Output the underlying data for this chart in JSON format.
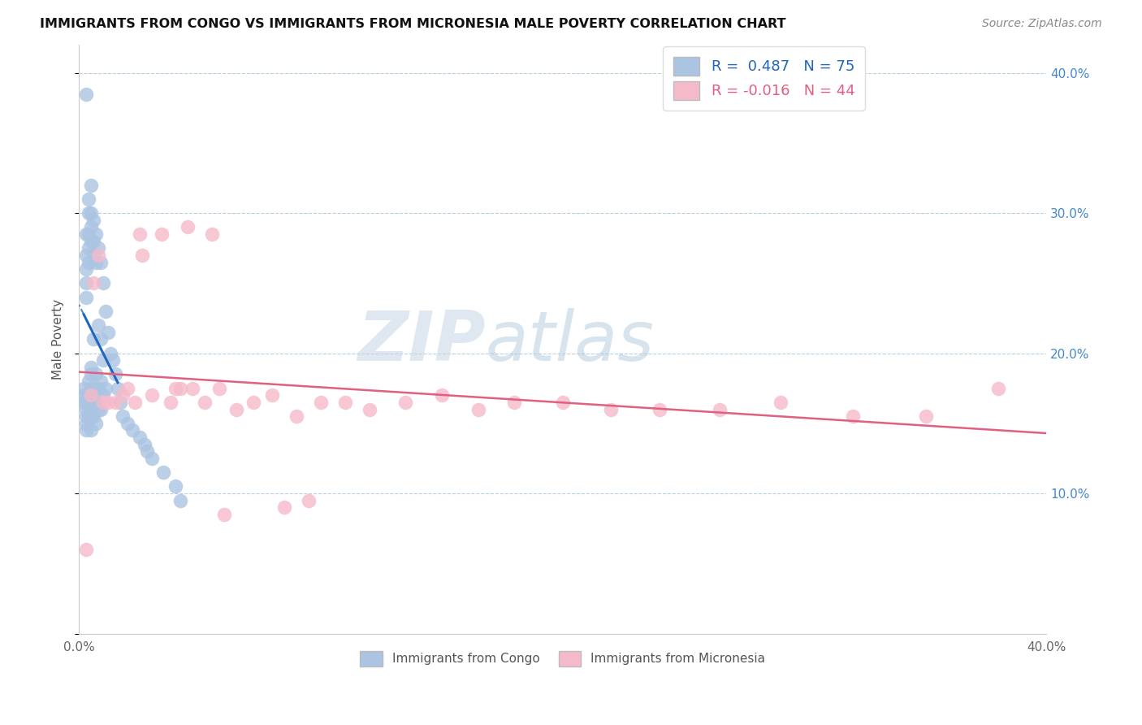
{
  "title": "IMMIGRANTS FROM CONGO VS IMMIGRANTS FROM MICRONESIA MALE POVERTY CORRELATION CHART",
  "source": "Source: ZipAtlas.com",
  "ylabel": "Male Poverty",
  "xlim": [
    0.0,
    0.4
  ],
  "ylim": [
    0.0,
    0.42
  ],
  "legend_r_congo": "0.487",
  "legend_n_congo": 75,
  "legend_r_micro": "-0.016",
  "legend_n_micro": 44,
  "congo_color": "#aac4e2",
  "micro_color": "#f5baca",
  "congo_line_color": "#2266bb",
  "micro_line_color": "#e06080",
  "watermark_zip": "ZIP",
  "watermark_atlas": "atlas",
  "watermark_color_zip": "#c5d5e5",
  "watermark_color_atlas": "#b0c8d8",
  "congo_x": [
    0.002,
    0.002,
    0.002,
    0.003,
    0.003,
    0.003,
    0.003,
    0.003,
    0.003,
    0.003,
    0.003,
    0.003,
    0.003,
    0.004,
    0.004,
    0.004,
    0.004,
    0.004,
    0.004,
    0.004,
    0.004,
    0.004,
    0.005,
    0.005,
    0.005,
    0.005,
    0.005,
    0.005,
    0.005,
    0.005,
    0.005,
    0.005,
    0.006,
    0.006,
    0.006,
    0.006,
    0.006,
    0.006,
    0.006,
    0.007,
    0.007,
    0.007,
    0.007,
    0.007,
    0.007,
    0.008,
    0.008,
    0.008,
    0.008,
    0.009,
    0.009,
    0.009,
    0.009,
    0.01,
    0.01,
    0.01,
    0.011,
    0.011,
    0.012,
    0.013,
    0.014,
    0.015,
    0.016,
    0.017,
    0.018,
    0.02,
    0.022,
    0.025,
    0.027,
    0.028,
    0.03,
    0.035,
    0.04,
    0.042,
    0.003
  ],
  "congo_y": [
    0.175,
    0.17,
    0.165,
    0.285,
    0.27,
    0.26,
    0.25,
    0.24,
    0.165,
    0.16,
    0.155,
    0.15,
    0.145,
    0.31,
    0.3,
    0.285,
    0.275,
    0.265,
    0.18,
    0.17,
    0.165,
    0.155,
    0.32,
    0.3,
    0.29,
    0.28,
    0.19,
    0.185,
    0.175,
    0.165,
    0.155,
    0.145,
    0.295,
    0.28,
    0.27,
    0.21,
    0.175,
    0.165,
    0.155,
    0.285,
    0.265,
    0.185,
    0.175,
    0.165,
    0.15,
    0.275,
    0.22,
    0.175,
    0.16,
    0.265,
    0.21,
    0.18,
    0.16,
    0.25,
    0.195,
    0.17,
    0.23,
    0.175,
    0.215,
    0.2,
    0.195,
    0.185,
    0.175,
    0.165,
    0.155,
    0.15,
    0.145,
    0.14,
    0.135,
    0.13,
    0.125,
    0.115,
    0.105,
    0.095,
    0.385
  ],
  "micro_x": [
    0.003,
    0.005,
    0.006,
    0.008,
    0.01,
    0.012,
    0.015,
    0.018,
    0.02,
    0.023,
    0.026,
    0.03,
    0.034,
    0.038,
    0.042,
    0.047,
    0.052,
    0.058,
    0.065,
    0.072,
    0.08,
    0.09,
    0.1,
    0.11,
    0.12,
    0.135,
    0.15,
    0.165,
    0.18,
    0.2,
    0.22,
    0.24,
    0.265,
    0.29,
    0.32,
    0.35,
    0.38,
    0.045,
    0.055,
    0.04,
    0.025,
    0.06,
    0.085,
    0.095
  ],
  "micro_y": [
    0.06,
    0.17,
    0.25,
    0.27,
    0.165,
    0.165,
    0.165,
    0.17,
    0.175,
    0.165,
    0.27,
    0.17,
    0.285,
    0.165,
    0.175,
    0.175,
    0.165,
    0.175,
    0.16,
    0.165,
    0.17,
    0.155,
    0.165,
    0.165,
    0.16,
    0.165,
    0.17,
    0.16,
    0.165,
    0.165,
    0.16,
    0.16,
    0.16,
    0.165,
    0.155,
    0.155,
    0.175,
    0.29,
    0.285,
    0.175,
    0.285,
    0.085,
    0.09,
    0.095
  ]
}
